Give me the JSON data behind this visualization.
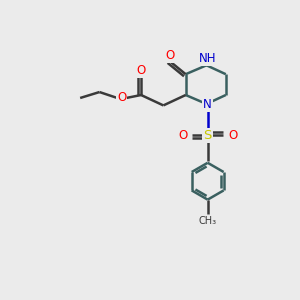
{
  "bg_color": "#ebebeb",
  "bond_color": "#3a3a3a",
  "bond_width": 1.8,
  "atom_colors": {
    "O": "#ff0000",
    "N": "#0000cd",
    "S": "#c8c800",
    "H": "#008080",
    "C": "#3a3a3a"
  },
  "font_size_atoms": 8.5,
  "font_size_small": 7.0,
  "ring_color": "#3a6060"
}
